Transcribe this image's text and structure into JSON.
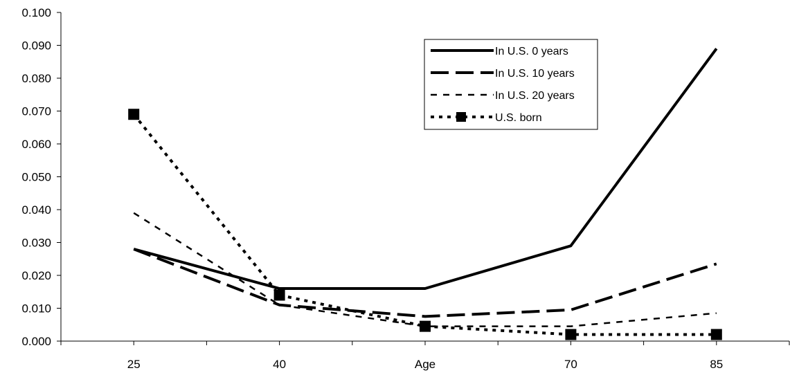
{
  "chart_data": {
    "type": "line",
    "categories": [
      "25",
      "40",
      "Age",
      "70",
      "85"
    ],
    "xlabel": "",
    "ylabel": "",
    "ylim": [
      0,
      0.1
    ],
    "yticks": [
      "0.000",
      "0.010",
      "0.020",
      "0.030",
      "0.040",
      "0.050",
      "0.060",
      "0.070",
      "0.080",
      "0.090",
      "0.100"
    ],
    "grid": false,
    "legend_position": "top-right",
    "series": [
      {
        "name": "In U.S. 0 years",
        "values": [
          0.028,
          0.016,
          0.016,
          0.029,
          0.089
        ],
        "style": "solid",
        "color": "#000000"
      },
      {
        "name": "In U.S. 10 years",
        "values": [
          0.028,
          0.011,
          0.0075,
          0.0095,
          0.0235
        ],
        "style": "longdash",
        "color": "#000000"
      },
      {
        "name": "In U.S. 20 years",
        "values": [
          0.039,
          0.011,
          0.0045,
          0.0045,
          0.0085
        ],
        "style": "shortdash",
        "color": "#000000"
      },
      {
        "name": "U.S. born",
        "values": [
          0.069,
          0.014,
          0.0045,
          0.002,
          0.002
        ],
        "style": "dotted-square",
        "color": "#000000"
      }
    ]
  }
}
